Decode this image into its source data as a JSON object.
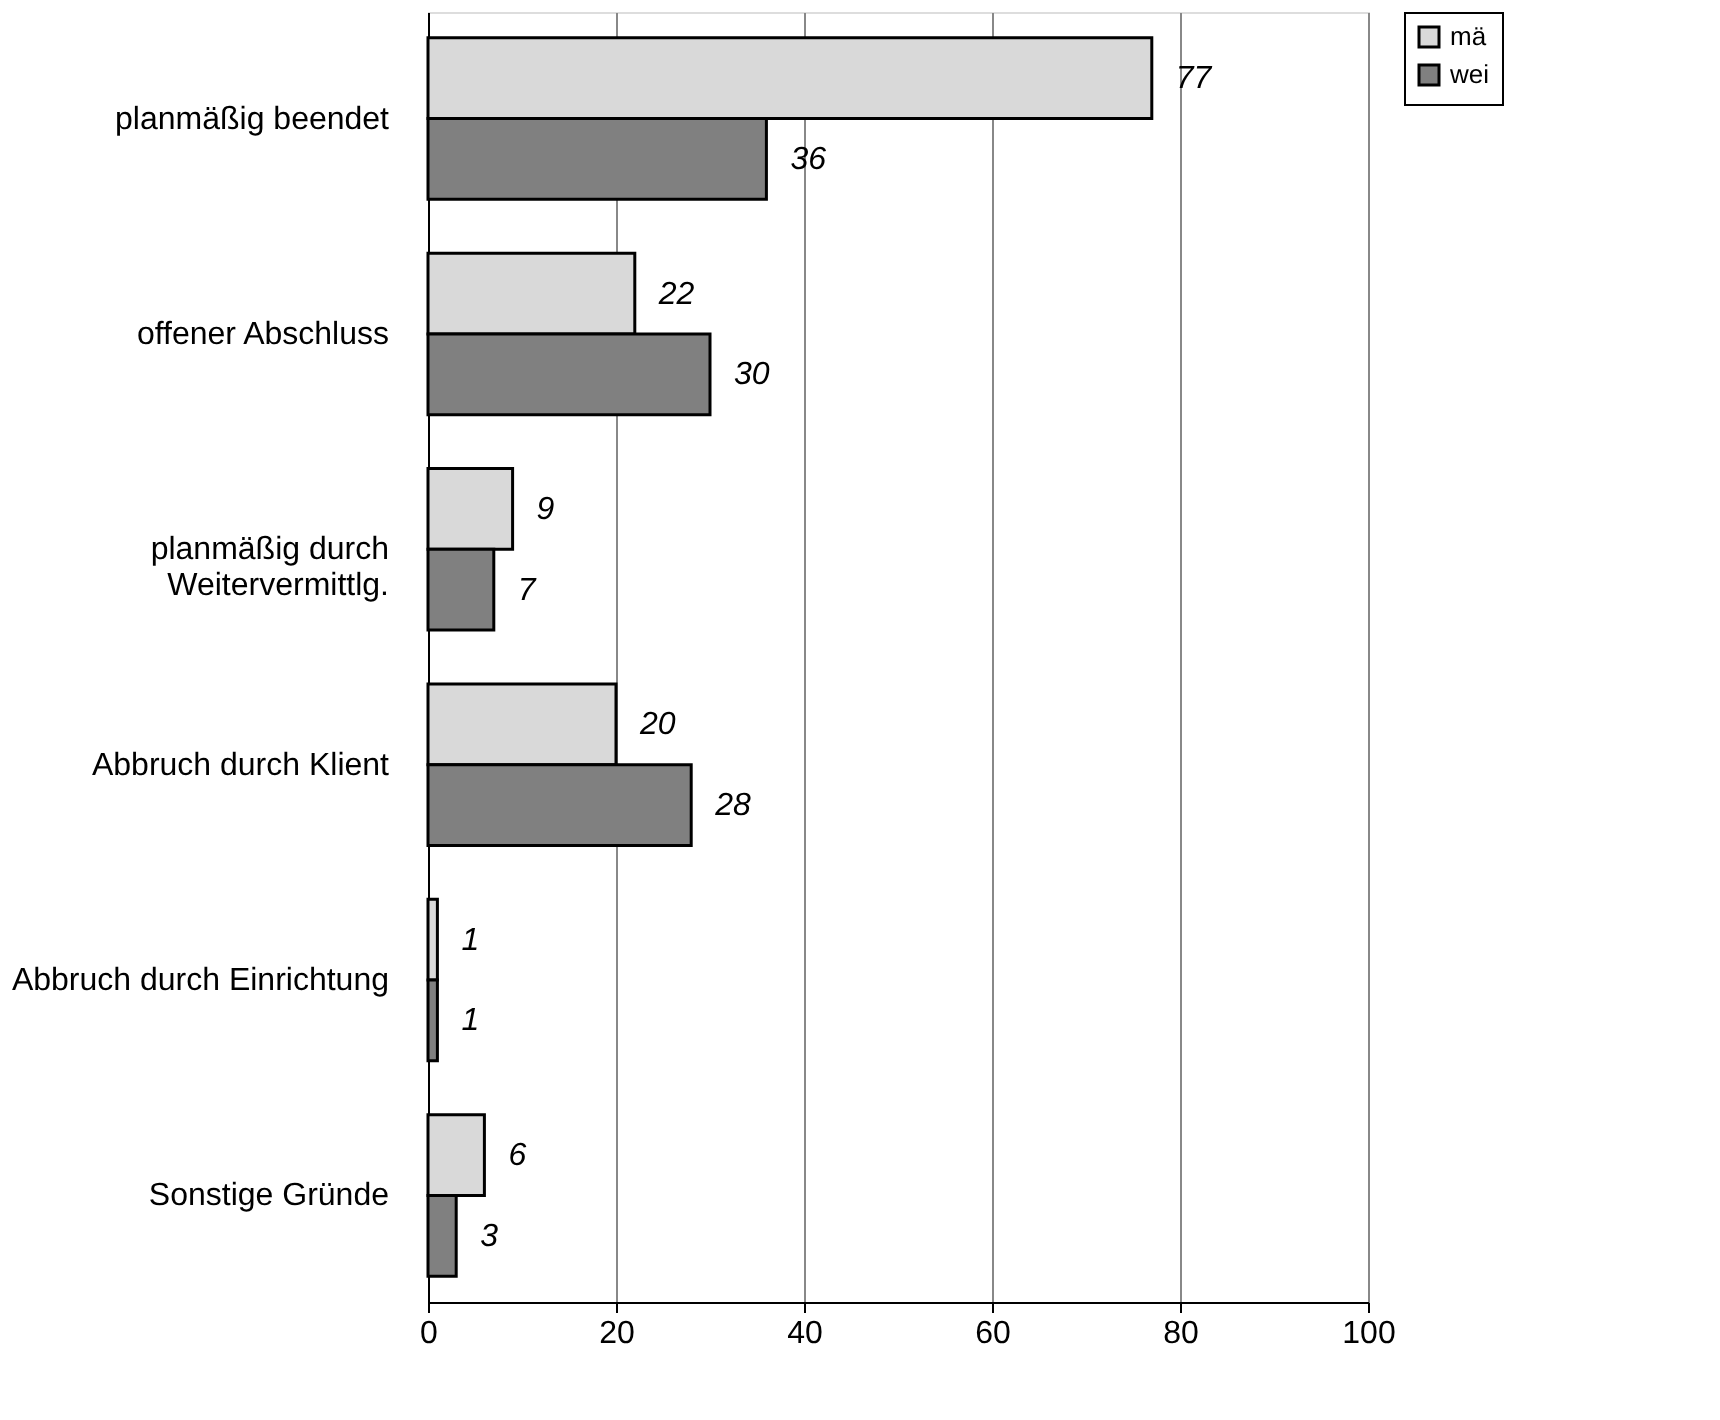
{
  "chart_data": {
    "type": "bar",
    "orientation": "horizontal",
    "categories": [
      "planmäßig beendet",
      "offener Abschluss",
      "planmäßig durch\nWeitervermittlg.",
      "Abbruch durch Klient",
      "Abbruch durch Einrichtung",
      "Sonstige Gründe"
    ],
    "series": [
      {
        "name": "mä",
        "color": "#d9d9d9",
        "values": [
          77,
          22,
          9,
          20,
          1,
          6
        ]
      },
      {
        "name": "wei",
        "color": "#808080",
        "values": [
          36,
          30,
          7,
          28,
          1,
          3
        ]
      }
    ],
    "xlim": [
      0,
      100
    ],
    "xticks": [
      0,
      20,
      40,
      60,
      80,
      100
    ],
    "grid": "x",
    "legend": "right",
    "data_labels": true
  }
}
